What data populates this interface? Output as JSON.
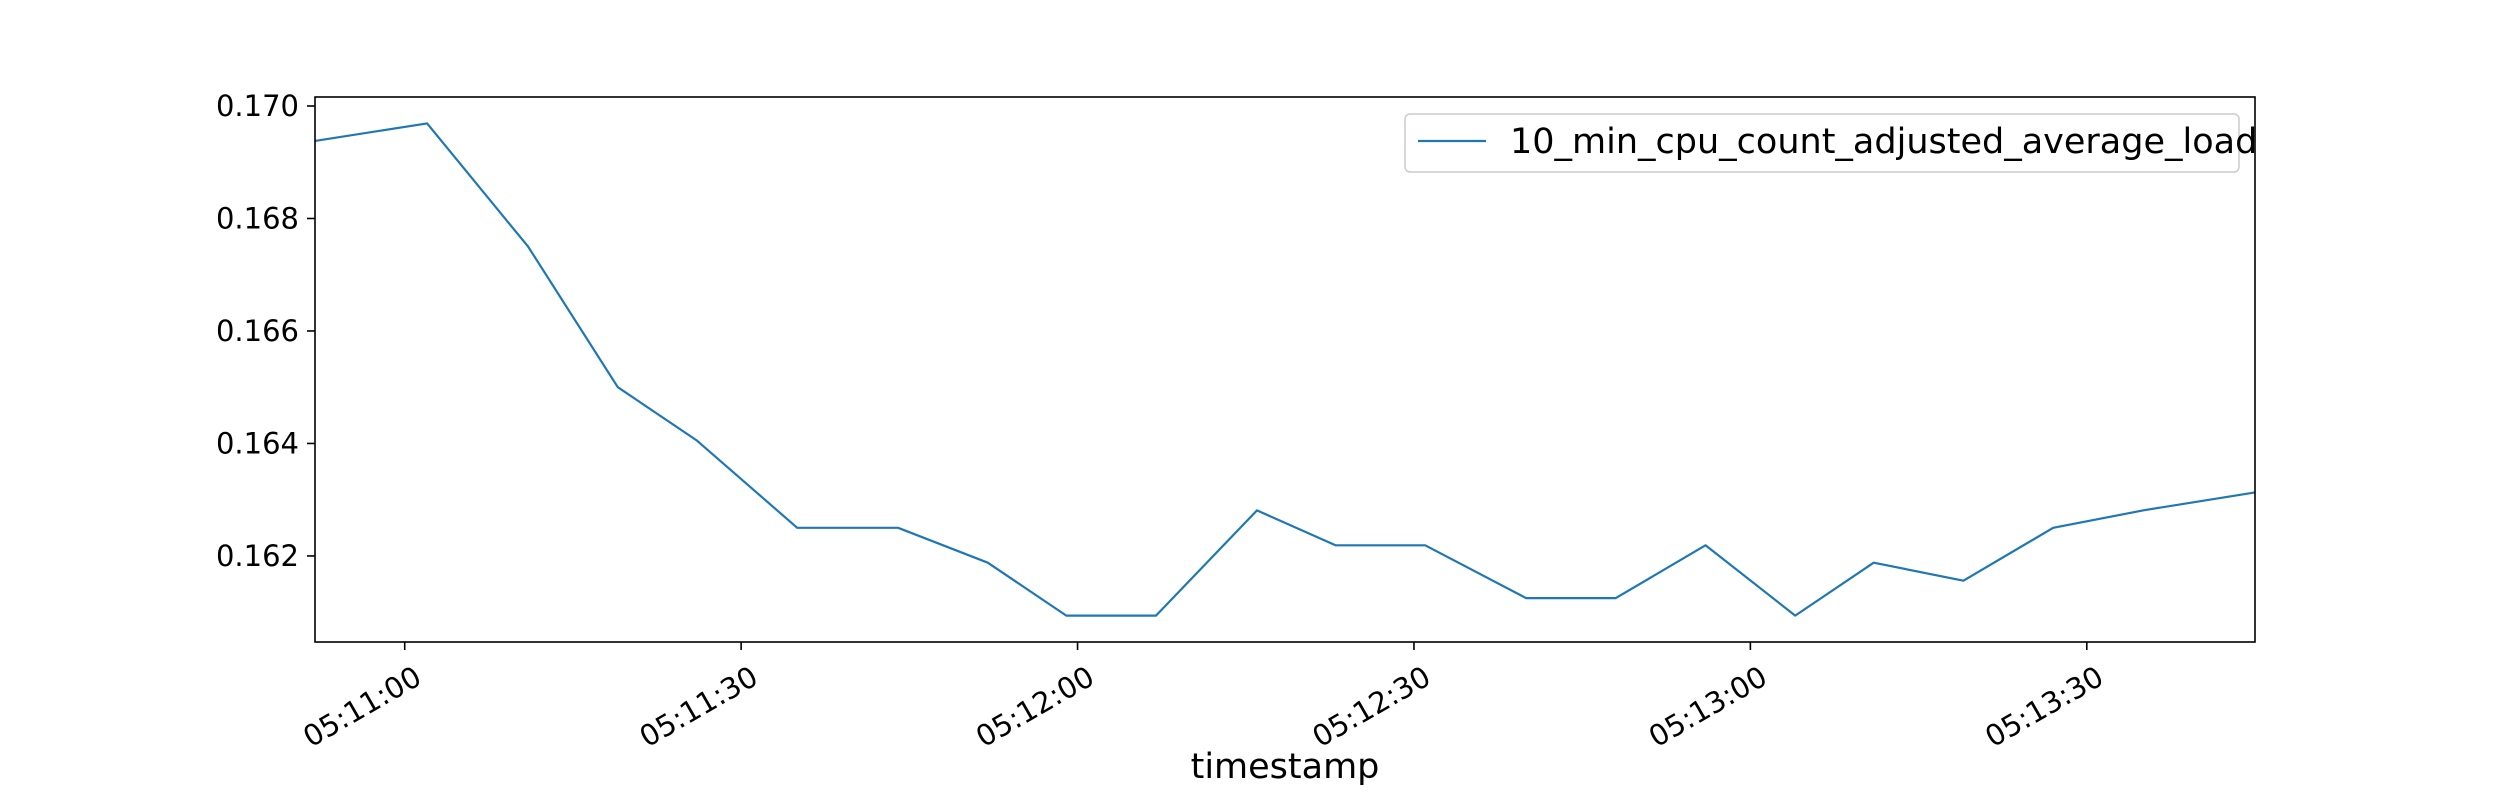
{
  "chart_data": {
    "type": "line",
    "title": "",
    "xlabel": "timestamp",
    "ylabel": "",
    "x": [
      "05:10:52",
      "05:11:02",
      "05:11:11",
      "05:11:19",
      "05:11:26",
      "05:11:35",
      "05:11:44",
      "05:11:52",
      "05:11:59",
      "05:12:07",
      "05:12:16",
      "05:12:23",
      "05:12:31",
      "05:12:40",
      "05:12:48",
      "05:12:56",
      "05:13:04",
      "05:13:11",
      "05:13:19",
      "05:13:27",
      "05:13:35",
      "05:13:45"
    ],
    "series": [
      {
        "name": "10_min_cpu_count_adjusted_average_load",
        "color": "#1f77b4",
        "values": [
          0.16938,
          0.16969,
          0.1675,
          0.165,
          0.16406,
          0.1625,
          0.1625,
          0.16188,
          0.16094,
          0.16094,
          0.16281,
          0.16219,
          0.16219,
          0.16125,
          0.16125,
          0.16219,
          0.16094,
          0.16188,
          0.16156,
          0.1625,
          0.16281,
          0.16313
        ]
      }
    ],
    "xlim": [
      "05:10:52",
      "05:13:45"
    ],
    "ylim": [
      0.16047,
      0.17016
    ],
    "x_ticks": [
      "05:11:00",
      "05:11:30",
      "05:12:00",
      "05:12:30",
      "05:13:00",
      "05:13:30"
    ],
    "y_ticks": [
      0.162,
      0.164,
      0.166,
      0.168,
      0.17
    ],
    "y_tick_labels": [
      "0.162",
      "0.164",
      "0.166",
      "0.168",
      "0.170"
    ],
    "grid": false,
    "legend": "top-right"
  }
}
